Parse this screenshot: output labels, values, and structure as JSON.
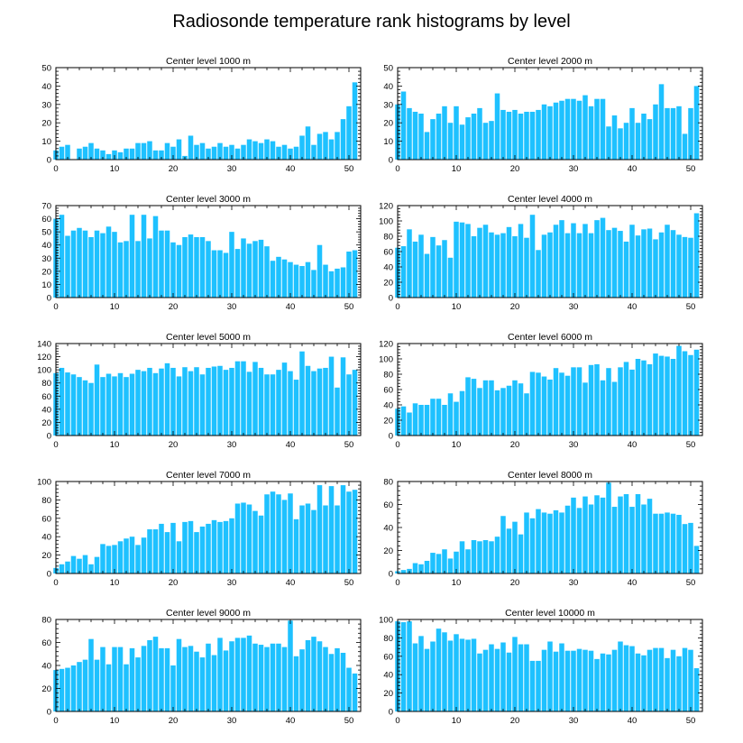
{
  "figure_title": "Radiosonde temperature rank histograms by level",
  "colors": {
    "bar": "#1ec1ff",
    "frame": "#000000"
  },
  "chart_data": [
    {
      "type": "bar",
      "title": "Center level 1000 m",
      "xlim": [
        0,
        52
      ],
      "ylim": [
        0,
        50
      ],
      "xticks": [
        0,
        10,
        20,
        30,
        40,
        50
      ],
      "yticks": [
        0,
        10,
        20,
        30,
        40,
        50
      ],
      "x": [
        0,
        1,
        2,
        3,
        4,
        5,
        6,
        7,
        8,
        9,
        10,
        11,
        12,
        13,
        14,
        15,
        16,
        17,
        18,
        19,
        20,
        21,
        22,
        23,
        24,
        25,
        26,
        27,
        28,
        29,
        30,
        31,
        32,
        33,
        34,
        35,
        36,
        37,
        38,
        39,
        40,
        41,
        42,
        43,
        44,
        45,
        46,
        47,
        48,
        49,
        50,
        51
      ],
      "values": [
        5,
        7,
        8,
        0,
        6,
        7,
        9,
        6,
        5,
        3,
        5,
        4,
        6,
        6,
        9,
        9,
        10,
        5,
        5,
        9,
        7,
        11,
        2,
        13,
        8,
        9,
        6,
        7,
        9,
        7,
        8,
        6,
        8,
        11,
        10,
        9,
        11,
        10,
        7,
        8,
        6,
        7,
        13,
        18,
        8,
        14,
        15,
        11,
        15,
        22,
        29,
        42
      ]
    },
    {
      "type": "bar",
      "title": "Center level 2000 m",
      "xlim": [
        0,
        52
      ],
      "ylim": [
        0,
        50
      ],
      "xticks": [
        0,
        10,
        20,
        30,
        40,
        50
      ],
      "yticks": [
        0,
        10,
        20,
        30,
        40,
        50
      ],
      "x": [
        0,
        1,
        2,
        3,
        4,
        5,
        6,
        7,
        8,
        9,
        10,
        11,
        12,
        13,
        14,
        15,
        16,
        17,
        18,
        19,
        20,
        21,
        22,
        23,
        24,
        25,
        26,
        27,
        28,
        29,
        30,
        31,
        32,
        33,
        34,
        35,
        36,
        37,
        38,
        39,
        40,
        41,
        42,
        43,
        44,
        45,
        46,
        47,
        48,
        49,
        50,
        51
      ],
      "values": [
        30,
        37,
        28,
        26,
        25,
        15,
        22,
        25,
        29,
        20,
        29,
        19,
        23,
        25,
        28,
        20,
        21,
        36,
        27,
        26,
        27,
        25,
        26,
        26,
        27,
        30,
        29,
        31,
        32,
        33,
        33,
        32,
        35,
        29,
        33,
        33,
        18,
        24,
        17,
        20,
        28,
        20,
        25,
        22,
        30,
        41,
        28,
        28,
        29,
        14,
        28,
        40
      ]
    },
    {
      "type": "bar",
      "title": "Center level 3000 m",
      "xlim": [
        0,
        52
      ],
      "ylim": [
        0,
        70
      ],
      "xticks": [
        0,
        10,
        20,
        30,
        40,
        50
      ],
      "yticks": [
        0,
        10,
        20,
        30,
        40,
        50,
        60,
        70
      ],
      "x": [
        0,
        1,
        2,
        3,
        4,
        5,
        6,
        7,
        8,
        9,
        10,
        11,
        12,
        13,
        14,
        15,
        16,
        17,
        18,
        19,
        20,
        21,
        22,
        23,
        24,
        25,
        26,
        27,
        28,
        29,
        30,
        31,
        32,
        33,
        34,
        35,
        36,
        37,
        38,
        39,
        40,
        41,
        42,
        43,
        44,
        45,
        46,
        47,
        48,
        49,
        50,
        51
      ],
      "values": [
        60,
        63,
        47,
        51,
        53,
        51,
        46,
        51,
        49,
        54,
        50,
        42,
        43,
        63,
        43,
        63,
        45,
        62,
        51,
        51,
        42,
        40,
        46,
        48,
        46,
        46,
        43,
        36,
        36,
        34,
        50,
        37,
        45,
        41,
        43,
        44,
        39,
        28,
        31,
        29,
        27,
        25,
        24,
        27,
        21,
        40,
        25,
        20,
        22,
        23,
        35,
        36
      ]
    },
    {
      "type": "bar",
      "title": "Center level 4000 m",
      "xlim": [
        0,
        52
      ],
      "ylim": [
        0,
        120
      ],
      "xticks": [
        0,
        10,
        20,
        30,
        40,
        50
      ],
      "yticks": [
        0,
        20,
        40,
        60,
        80,
        100,
        120
      ],
      "x": [
        0,
        1,
        2,
        3,
        4,
        5,
        6,
        7,
        8,
        9,
        10,
        11,
        12,
        13,
        14,
        15,
        16,
        17,
        18,
        19,
        20,
        21,
        22,
        23,
        24,
        25,
        26,
        27,
        28,
        29,
        30,
        31,
        32,
        33,
        34,
        35,
        36,
        37,
        38,
        39,
        40,
        41,
        42,
        43,
        44,
        45,
        46,
        47,
        48,
        49,
        50,
        51
      ],
      "values": [
        65,
        67,
        89,
        73,
        82,
        57,
        79,
        68,
        75,
        52,
        99,
        98,
        96,
        80,
        91,
        95,
        85,
        82,
        84,
        92,
        80,
        96,
        78,
        108,
        62,
        82,
        85,
        95,
        101,
        84,
        97,
        84,
        96,
        84,
        101,
        104,
        88,
        91,
        87,
        73,
        95,
        81,
        89,
        90,
        76,
        85,
        95,
        88,
        82,
        79,
        78,
        110
      ]
    },
    {
      "type": "bar",
      "title": "Center level 5000 m",
      "xlim": [
        0,
        52
      ],
      "ylim": [
        0,
        140
      ],
      "xticks": [
        0,
        10,
        20,
        30,
        40,
        50
      ],
      "yticks": [
        0,
        20,
        40,
        60,
        80,
        100,
        120,
        140
      ],
      "x": [
        0,
        1,
        2,
        3,
        4,
        5,
        6,
        7,
        8,
        9,
        10,
        11,
        12,
        13,
        14,
        15,
        16,
        17,
        18,
        19,
        20,
        21,
        22,
        23,
        24,
        25,
        26,
        27,
        28,
        29,
        30,
        31,
        32,
        33,
        34,
        35,
        36,
        37,
        38,
        39,
        40,
        41,
        42,
        43,
        44,
        45,
        46,
        47,
        48,
        49,
        50,
        51
      ],
      "values": [
        95,
        103,
        96,
        93,
        89,
        84,
        80,
        108,
        89,
        94,
        90,
        95,
        89,
        94,
        100,
        98,
        103,
        95,
        102,
        110,
        103,
        90,
        104,
        98,
        104,
        93,
        103,
        105,
        106,
        100,
        103,
        113,
        113,
        97,
        112,
        103,
        93,
        93,
        100,
        111,
        98,
        85,
        128,
        106,
        98,
        102,
        103,
        120,
        73,
        119,
        93,
        100
      ]
    },
    {
      "type": "bar",
      "title": "Center level 6000 m",
      "xlim": [
        0,
        52
      ],
      "ylim": [
        0,
        120
      ],
      "xticks": [
        0,
        10,
        20,
        30,
        40,
        50
      ],
      "yticks": [
        0,
        20,
        40,
        60,
        80,
        100,
        120
      ],
      "x": [
        0,
        1,
        2,
        3,
        4,
        5,
        6,
        7,
        8,
        9,
        10,
        11,
        12,
        13,
        14,
        15,
        16,
        17,
        18,
        19,
        20,
        21,
        22,
        23,
        24,
        25,
        26,
        27,
        28,
        29,
        30,
        31,
        32,
        33,
        34,
        35,
        36,
        37,
        38,
        39,
        40,
        41,
        42,
        43,
        44,
        45,
        46,
        47,
        48,
        49,
        50,
        51
      ],
      "values": [
        35,
        38,
        30,
        42,
        40,
        40,
        48,
        48,
        40,
        55,
        44,
        58,
        76,
        74,
        62,
        72,
        72,
        59,
        62,
        65,
        72,
        68,
        55,
        83,
        82,
        77,
        73,
        88,
        82,
        78,
        89,
        89,
        69,
        92,
        93,
        72,
        88,
        70,
        89,
        96,
        86,
        100,
        98,
        93,
        107,
        104,
        103,
        100,
        117,
        110,
        105,
        112
      ]
    },
    {
      "type": "bar",
      "title": "Center level 7000 m",
      "xlim": [
        0,
        52
      ],
      "ylim": [
        0,
        100
      ],
      "xticks": [
        0,
        10,
        20,
        30,
        40,
        50
      ],
      "yticks": [
        0,
        20,
        40,
        60,
        80,
        100
      ],
      "x": [
        0,
        1,
        2,
        3,
        4,
        5,
        6,
        7,
        8,
        9,
        10,
        11,
        12,
        13,
        14,
        15,
        16,
        17,
        18,
        19,
        20,
        21,
        22,
        23,
        24,
        25,
        26,
        27,
        28,
        29,
        30,
        31,
        32,
        33,
        34,
        35,
        36,
        37,
        38,
        39,
        40,
        41,
        42,
        43,
        44,
        45,
        46,
        47,
        48,
        49,
        50,
        51
      ],
      "values": [
        6,
        10,
        13,
        19,
        16,
        20,
        10,
        18,
        32,
        30,
        31,
        35,
        38,
        40,
        31,
        39,
        48,
        48,
        54,
        45,
        55,
        35,
        56,
        57,
        45,
        51,
        54,
        58,
        56,
        57,
        60,
        76,
        77,
        75,
        68,
        63,
        86,
        89,
        86,
        80,
        87,
        59,
        74,
        76,
        69,
        96,
        74,
        95,
        74,
        96,
        89,
        91
      ]
    },
    {
      "type": "bar",
      "title": "Center level 8000 m",
      "xlim": [
        0,
        52
      ],
      "ylim": [
        0,
        80
      ],
      "xticks": [
        0,
        10,
        20,
        30,
        40,
        50
      ],
      "yticks": [
        0,
        20,
        40,
        60,
        80
      ],
      "x": [
        0,
        1,
        2,
        3,
        4,
        5,
        6,
        7,
        8,
        9,
        10,
        11,
        12,
        13,
        14,
        15,
        16,
        17,
        18,
        19,
        20,
        21,
        22,
        23,
        24,
        25,
        26,
        27,
        28,
        29,
        30,
        31,
        32,
        33,
        34,
        35,
        36,
        37,
        38,
        39,
        40,
        41,
        42,
        43,
        44,
        45,
        46,
        47,
        48,
        49,
        50,
        51
      ],
      "values": [
        2,
        3,
        4,
        9,
        8,
        11,
        18,
        17,
        21,
        13,
        19,
        28,
        21,
        29,
        28,
        29,
        28,
        32,
        50,
        39,
        45,
        34,
        53,
        48,
        56,
        53,
        52,
        55,
        53,
        59,
        66,
        57,
        67,
        60,
        68,
        66,
        79,
        58,
        67,
        69,
        58,
        69,
        60,
        65,
        52,
        52,
        53,
        52,
        51,
        43,
        44,
        24
      ]
    },
    {
      "type": "bar",
      "title": "Center level 9000 m",
      "xlim": [
        0,
        52
      ],
      "ylim": [
        0,
        80
      ],
      "xticks": [
        0,
        10,
        20,
        30,
        40,
        50
      ],
      "yticks": [
        0,
        20,
        40,
        60,
        80
      ],
      "x": [
        0,
        1,
        2,
        3,
        4,
        5,
        6,
        7,
        8,
        9,
        10,
        11,
        12,
        13,
        14,
        15,
        16,
        17,
        18,
        19,
        20,
        21,
        22,
        23,
        24,
        25,
        26,
        27,
        28,
        29,
        30,
        31,
        32,
        33,
        34,
        35,
        36,
        37,
        38,
        39,
        40,
        41,
        42,
        43,
        44,
        45,
        46,
        47,
        48,
        49,
        50,
        51
      ],
      "values": [
        36,
        37,
        38,
        40,
        43,
        45,
        63,
        45,
        56,
        41,
        56,
        56,
        41,
        55,
        47,
        57,
        62,
        65,
        55,
        55,
        40,
        63,
        56,
        57,
        52,
        47,
        59,
        49,
        64,
        53,
        61,
        64,
        64,
        66,
        59,
        58,
        56,
        59,
        59,
        56,
        79,
        48,
        54,
        62,
        65,
        61,
        56,
        50,
        55,
        51,
        38,
        33
      ]
    },
    {
      "type": "bar",
      "title": "Center level 10000 m",
      "xlim": [
        0,
        52
      ],
      "ylim": [
        0,
        100
      ],
      "xticks": [
        0,
        10,
        20,
        30,
        40,
        50
      ],
      "yticks": [
        0,
        20,
        40,
        60,
        80,
        100
      ],
      "x": [
        0,
        1,
        2,
        3,
        4,
        5,
        6,
        7,
        8,
        9,
        10,
        11,
        12,
        13,
        14,
        15,
        16,
        17,
        18,
        19,
        20,
        21,
        22,
        23,
        24,
        25,
        26,
        27,
        28,
        29,
        30,
        31,
        32,
        33,
        34,
        35,
        36,
        37,
        38,
        39,
        40,
        41,
        42,
        43,
        44,
        45,
        46,
        47,
        48,
        49,
        50,
        51
      ],
      "values": [
        98,
        97,
        98,
        74,
        82,
        68,
        76,
        90,
        86,
        77,
        84,
        79,
        78,
        79,
        63,
        67,
        73,
        68,
        75,
        64,
        81,
        73,
        73,
        55,
        55,
        67,
        76,
        65,
        74,
        66,
        66,
        68,
        67,
        66,
        57,
        63,
        62,
        67,
        76,
        72,
        71,
        63,
        61,
        67,
        69,
        69,
        58,
        67,
        60,
        69,
        67,
        47
      ]
    }
  ]
}
